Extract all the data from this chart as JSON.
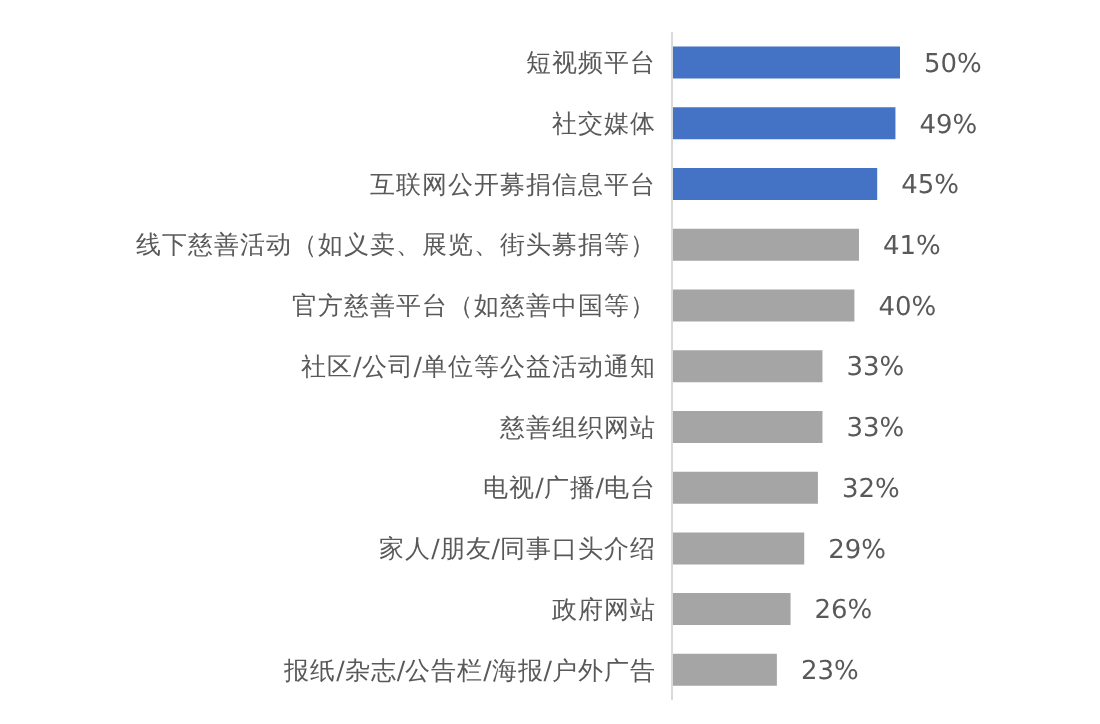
{
  "chart_data": {
    "type": "bar",
    "orientation": "horizontal",
    "tick_labels": "y",
    "grid": false,
    "legend": false,
    "categories": [
      "短视频平台",
      "社交媒体",
      "互联网公开募捐信息平台",
      "线下慈善活动（如义卖、展览、街头募捐等）",
      "官方慈善平台（如慈善中国等）",
      "社区/公司/单位等公益活动通知",
      "慈善组织网站",
      "电视/广播/电台",
      "家人/朋友/同事口头介绍",
      "政府网站",
      "报纸/杂志/公告栏/海报/户外广告"
    ],
    "values": [
      50,
      49,
      45,
      41,
      40,
      33,
      33,
      32,
      29,
      26,
      23
    ],
    "value_labels": [
      "50%",
      "49%",
      "45%",
      "41%",
      "40%",
      "33%",
      "33%",
      "32%",
      "29%",
      "26%",
      "23%"
    ],
    "colors": [
      "#4472c4",
      "#4472c4",
      "#4472c4",
      "#a5a5a5",
      "#a5a5a5",
      "#a5a5a5",
      "#a5a5a5",
      "#a5a5a5",
      "#a5a5a5",
      "#a5a5a5",
      "#a5a5a5"
    ]
  }
}
